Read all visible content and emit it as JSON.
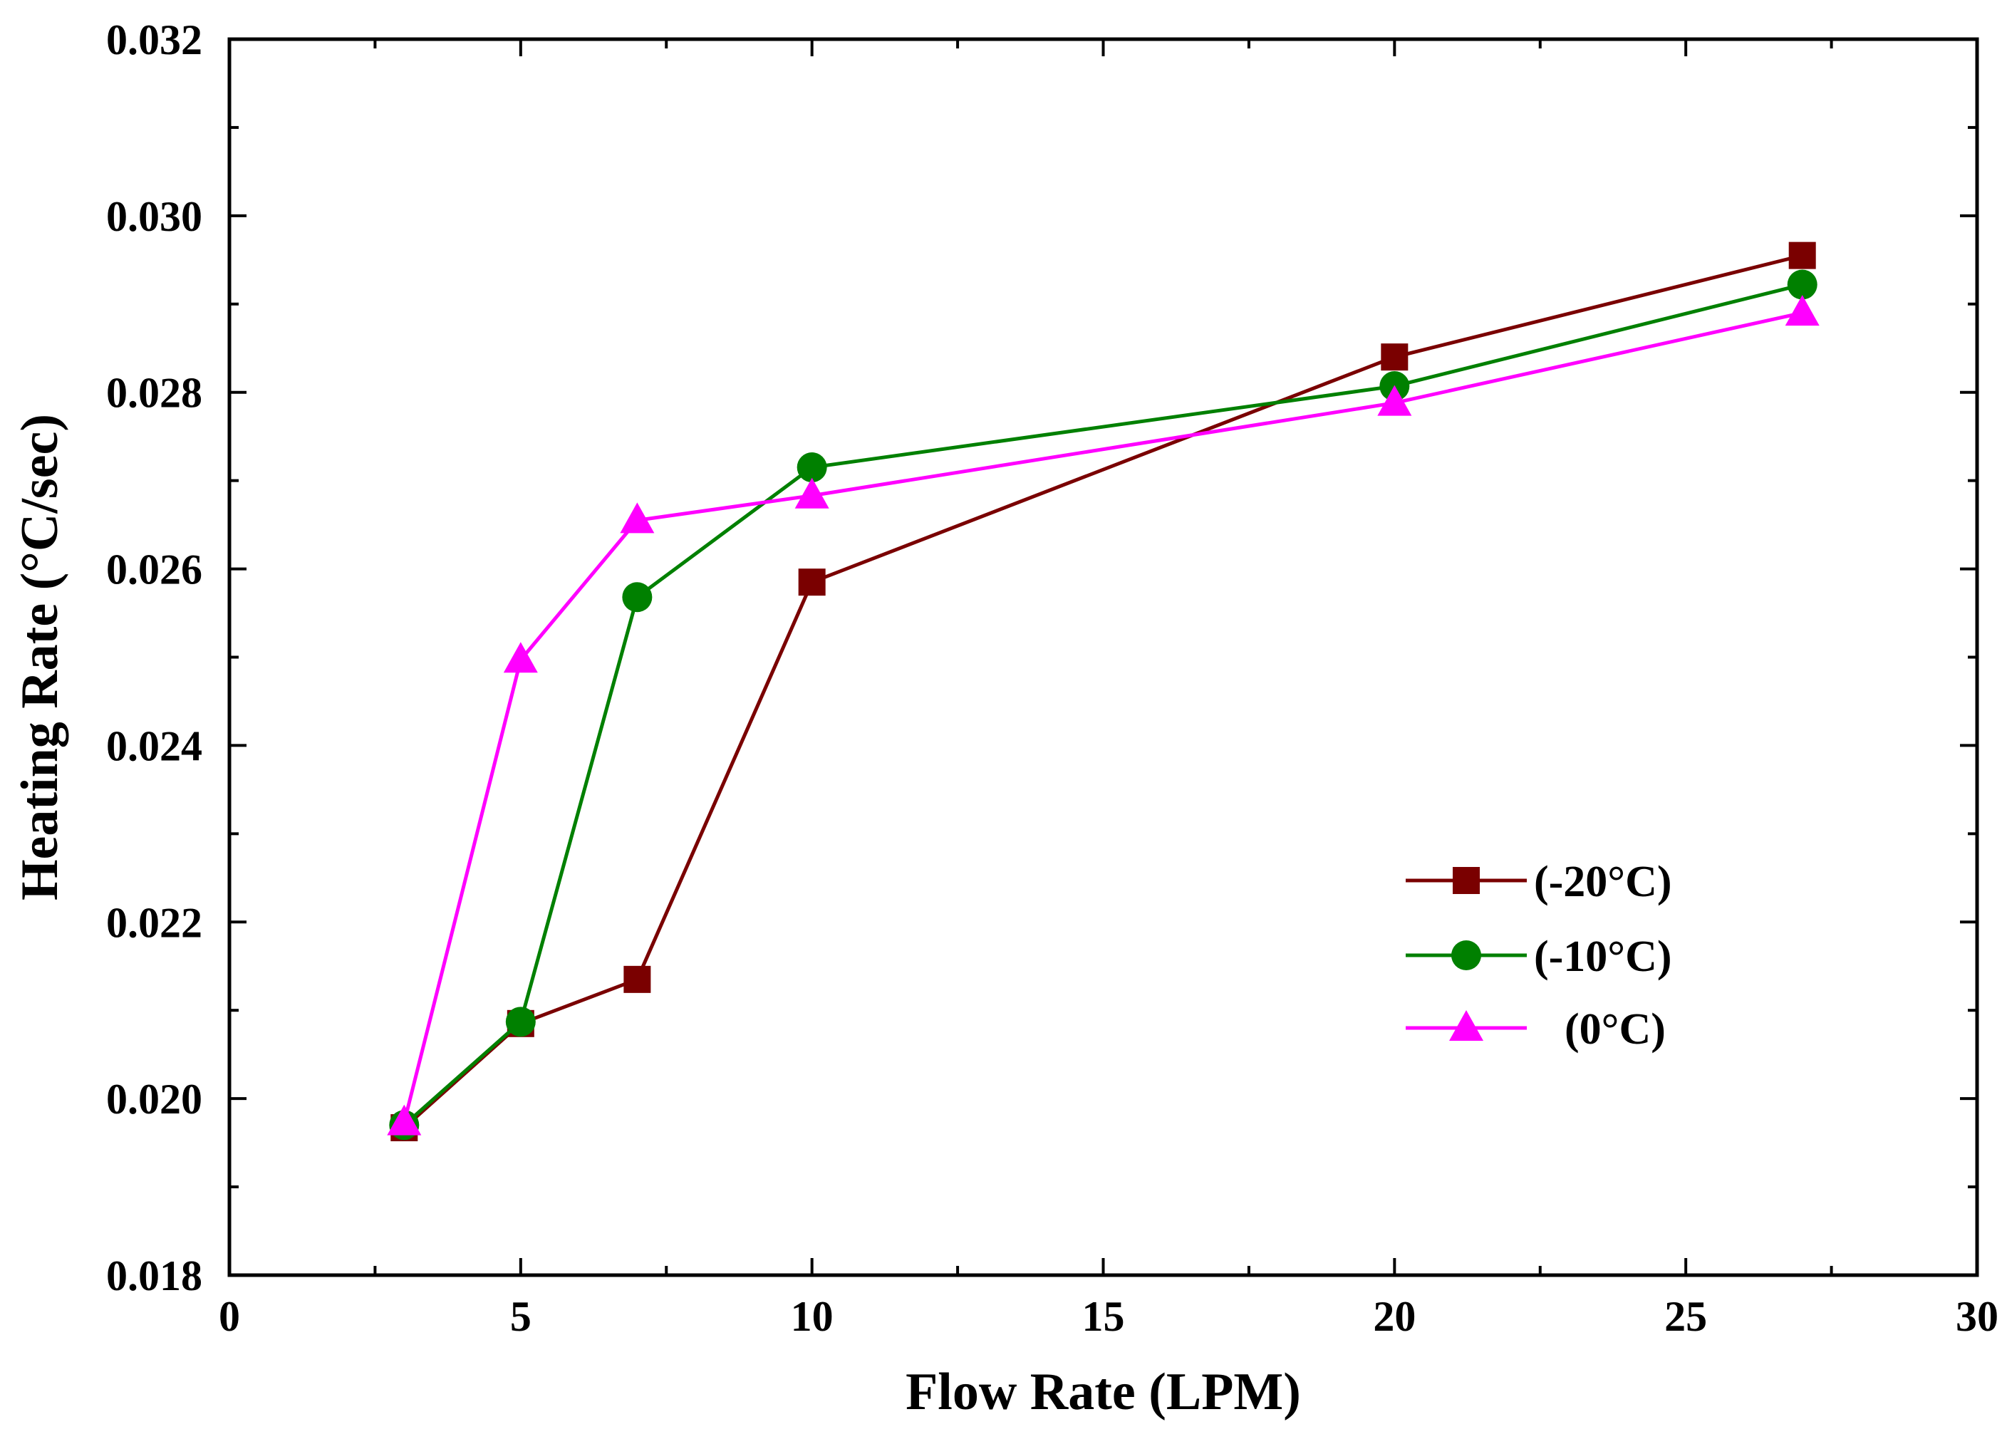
{
  "chart_data": {
    "type": "line",
    "title": "",
    "xlabel": "Flow Rate (LPM)",
    "ylabel": "Heating Rate (°C/sec)",
    "xlim": [
      0,
      30
    ],
    "ylim": [
      0.018,
      0.032
    ],
    "x_ticks": [
      0,
      5,
      10,
      15,
      20,
      25,
      30
    ],
    "x_tick_labels": [
      "0",
      "5",
      "10",
      "15",
      "20",
      "25",
      "30"
    ],
    "y_ticks": [
      0.018,
      0.02,
      0.022,
      0.024,
      0.026,
      0.028,
      0.03,
      0.032
    ],
    "y_tick_labels": [
      "0.018",
      "0.020",
      "0.022",
      "0.024",
      "0.026",
      "0.028",
      "0.030",
      "0.032"
    ],
    "grid": false,
    "legend_position": "center-right",
    "x": [
      3,
      5,
      7,
      10,
      20,
      27
    ],
    "series": [
      {
        "name": "(-20°C)",
        "marker": "square",
        "color": "#7a0000",
        "values": [
          0.01967,
          0.02085,
          0.02135,
          0.02585,
          0.0284,
          0.02955
        ]
      },
      {
        "name": "(-10°C)",
        "marker": "circle",
        "color": "#008000",
        "values": [
          0.0197,
          0.02087,
          0.02568,
          0.02715,
          0.02807,
          0.02922
        ]
      },
      {
        "name": "(0°C)",
        "marker": "triangle",
        "color": "#ff00ff",
        "values": [
          0.01973,
          0.02497,
          0.02655,
          0.02683,
          0.02788,
          0.0289
        ]
      }
    ]
  }
}
